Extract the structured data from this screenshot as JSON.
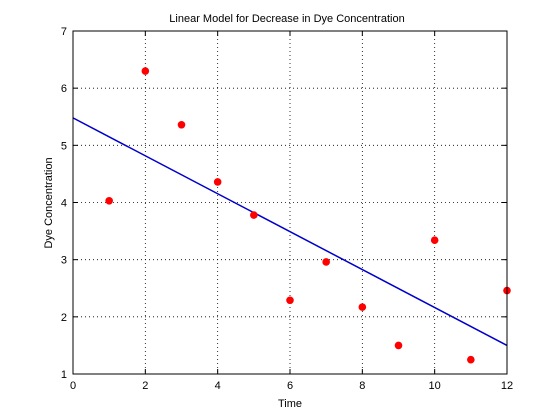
{
  "chart_data": {
    "type": "scatter",
    "title": "Linear Model for Decrease in Dye Concentration",
    "xlabel": "Time",
    "ylabel": "Dye Concentration",
    "xlim": [
      0,
      12
    ],
    "ylim": [
      1,
      7
    ],
    "xticks": [
      0,
      2,
      4,
      6,
      8,
      10,
      12
    ],
    "yticks": [
      1,
      2,
      3,
      4,
      5,
      6,
      7
    ],
    "grid": true,
    "box": true,
    "series": [
      {
        "kind": "scatter",
        "color": "#ff0000",
        "marker": "circle",
        "x": [
          1,
          2,
          3,
          4,
          5,
          6,
          7,
          8,
          9,
          10,
          11,
          12
        ],
        "y": [
          4.03,
          6.3,
          5.36,
          4.36,
          3.78,
          2.29,
          2.96,
          2.17,
          1.5,
          3.34,
          1.25,
          2.46
        ]
      },
      {
        "kind": "line",
        "color": "#0000cc",
        "x": [
          0,
          12
        ],
        "y": [
          5.48,
          1.5
        ]
      }
    ]
  }
}
